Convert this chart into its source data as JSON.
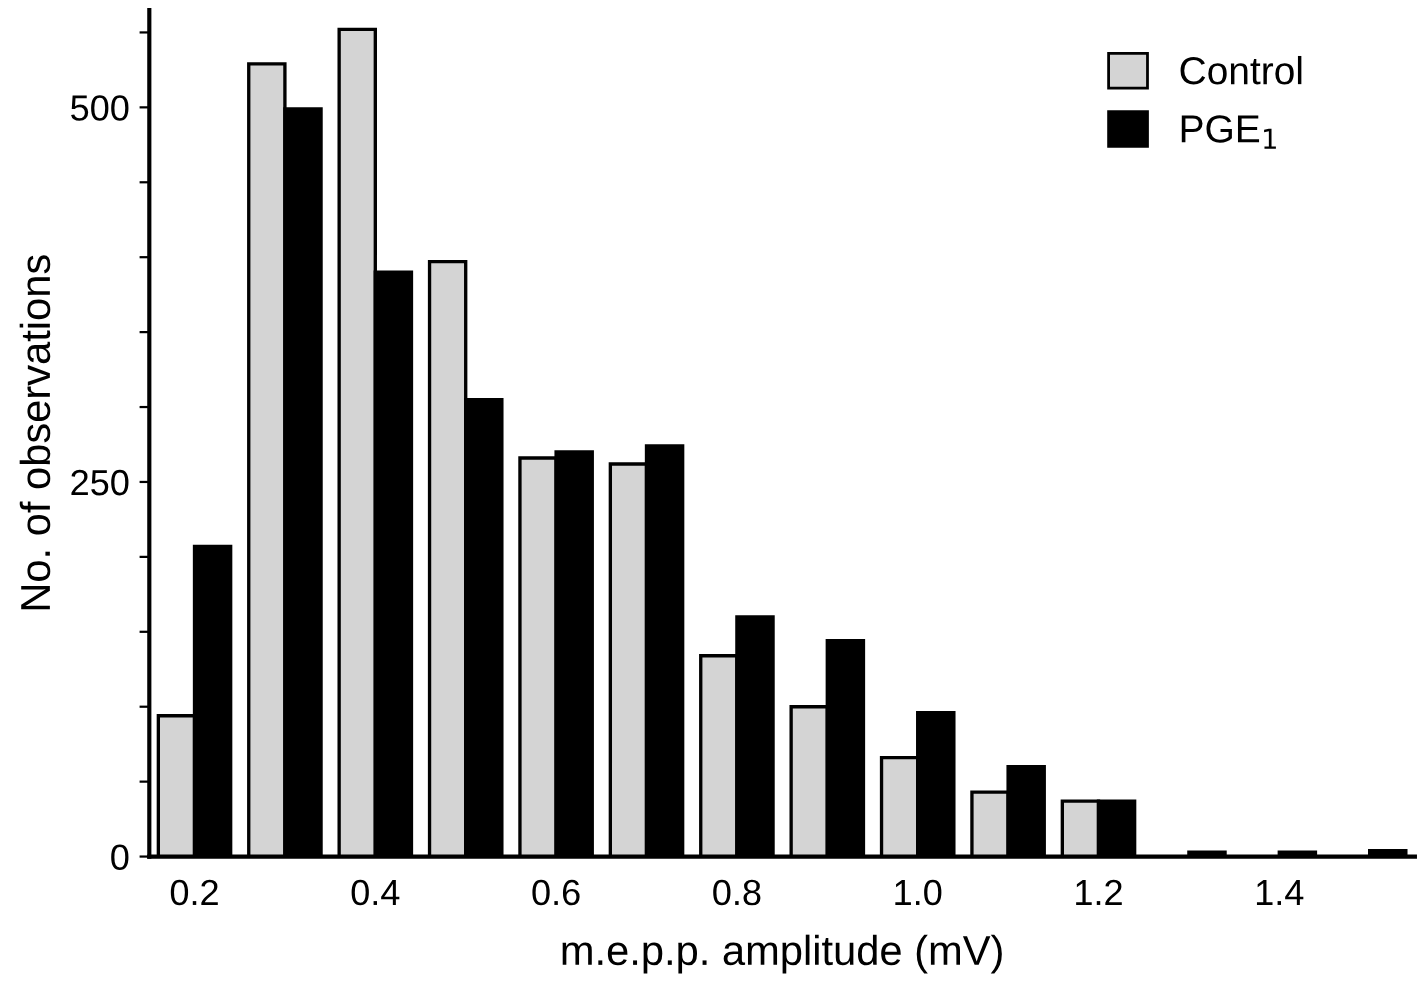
{
  "chart_data": {
    "type": "bar",
    "xlabel": "m.e.p.p. amplitude (mV)",
    "ylabel": "No. of observations",
    "categories": [
      "0.2",
      null,
      "0.4",
      null,
      "0.6",
      null,
      "0.8",
      null,
      "1.0",
      null,
      "1.2",
      null,
      "1.4",
      null
    ],
    "series": [
      {
        "name": "Control",
        "color": "#d4d4d4",
        "values": [
          94,
          529,
          552,
          397,
          266,
          262,
          134,
          100,
          66,
          43,
          37,
          null,
          null,
          null
        ]
      },
      {
        "name": "PGE$_{1}$",
        "color": "#000000",
        "values": [
          207,
          499,
          390,
          305,
          270,
          274,
          160,
          144,
          96,
          60,
          37,
          3,
          3,
          4
        ]
      }
    ],
    "ylim": [
      0,
      565
    ],
    "yticks": [
      0,
      {
        "value": 50,
        "label": null
      },
      {
        "value": 100,
        "label": null
      },
      {
        "value": 150,
        "label": null
      },
      {
        "value": 200,
        "label": null
      },
      250,
      {
        "value": 300,
        "label": null
      },
      {
        "value": 350,
        "label": null
      },
      {
        "value": 400,
        "label": null
      },
      {
        "value": 450,
        "label": null
      },
      500,
      {
        "value": 550,
        "label": null
      }
    ],
    "grid": false,
    "legend": "top right"
  }
}
